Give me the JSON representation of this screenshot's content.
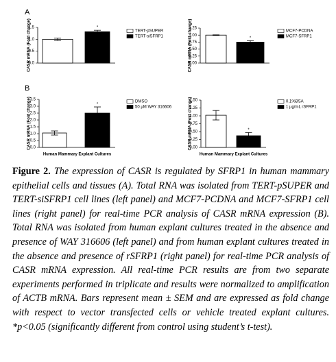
{
  "panel_labels": [
    "A",
    "B"
  ],
  "chart_data": [
    {
      "type": "bar",
      "ylabel": "CASR mRNA (Fold change)",
      "ylim": [
        0,
        1.5
      ],
      "yticks": [
        {
          "value": 0,
          "label": "0.0"
        },
        {
          "value": 0.5,
          "label": "0.5"
        },
        {
          "value": 1,
          "label": "1.0"
        },
        {
          "value": 1.5,
          "label": "1.5"
        }
      ],
      "series": [
        {
          "name": "TERT-pSUPER",
          "color": "#ffffff",
          "values": [
            1.0
          ],
          "errors": [
            0.05
          ]
        },
        {
          "name": "TERT-siSFRP1",
          "color": "#000000",
          "values": [
            1.32
          ],
          "errors": [
            0.06
          ]
        }
      ],
      "annotation": "*"
    },
    {
      "type": "bar",
      "ylabel": "CASR mRNA (Fold change)",
      "ylim": [
        0,
        1.25
      ],
      "yticks": [
        {
          "value": 0,
          "label": "0.00"
        },
        {
          "value": 0.25,
          "label": "0.25"
        },
        {
          "value": 0.5,
          "label": "0.50"
        },
        {
          "value": 0.75,
          "label": "0.75"
        },
        {
          "value": 1,
          "label": "1.00"
        },
        {
          "value": 1.25,
          "label": "1.25"
        }
      ],
      "series": [
        {
          "name": "MCF7-PCDNA",
          "color": "#ffffff",
          "values": [
            1.0
          ],
          "errors": [
            0.01
          ]
        },
        {
          "name": "MCF7-SFRP1",
          "color": "#000000",
          "values": [
            0.75
          ],
          "errors": [
            0.05
          ]
        }
      ],
      "annotation": "*"
    },
    {
      "type": "bar",
      "ylabel": "CASR mRNA (Fold change)",
      "xlabel": "Human Mammary Explant Cultures",
      "ylim": [
        0,
        3.5
      ],
      "yticks": [
        {
          "value": 0,
          "label": "0.0"
        },
        {
          "value": 0.5,
          "label": "0.5"
        },
        {
          "value": 1,
          "label": "1.0"
        },
        {
          "value": 1.5,
          "label": "1.5"
        },
        {
          "value": 2,
          "label": "2.0"
        },
        {
          "value": 2.5,
          "label": "2.5"
        },
        {
          "value": 3,
          "label": "3.0"
        },
        {
          "value": 3.5,
          "label": "3.5"
        }
      ],
      "series": [
        {
          "name": "DMSO",
          "color": "#ffffff",
          "values": [
            1.05
          ],
          "errors": [
            0.15
          ]
        },
        {
          "name": "50 µM WAY 316606",
          "color": "#000000",
          "values": [
            2.5
          ],
          "errors": [
            0.45
          ]
        }
      ],
      "annotation": "*"
    },
    {
      "type": "bar",
      "ylabel": "CASR mRNA (Fold change)",
      "xlabel": "Human Mammary Explant Cultures",
      "ylim": [
        0,
        1.5
      ],
      "yticks": [
        {
          "value": 0,
          "label": "0.00"
        },
        {
          "value": 0.25,
          "label": "0.25"
        },
        {
          "value": 0.5,
          "label": "0.50"
        },
        {
          "value": 0.75,
          "label": "0.75"
        },
        {
          "value": 1,
          "label": "1.00"
        },
        {
          "value": 1.25,
          "label": "1.25"
        },
        {
          "value": 1.5,
          "label": "1.50"
        }
      ],
      "series": [
        {
          "name": "0.1%BSA",
          "color": "#ffffff",
          "values": [
            1.02
          ],
          "errors": [
            0.15
          ]
        },
        {
          "name": "1 µg/mL rSFRP1",
          "color": "#000000",
          "values": [
            0.37
          ],
          "errors": [
            0.1
          ]
        }
      ],
      "annotation": "*"
    }
  ],
  "caption": {
    "label": "Figure 2.",
    "text": "The expression of CASR is regulated by SFRP1 in human mammary epithelial cells and tissues (A). Total RNA was isolated from TERT-pSUPER and TERT-siSFRP1 cell lines (left panel) and MCF7-PCDNA and MCF7-SFRP1 cell lines (right panel) for real-time PCR analysis of CASR mRNA expression (B). Total RNA was isolated from human explant cultures treated in the absence and presence of WAY 316606 (left panel) and from human explant cultures treated in the absence and presence of rSFRP1 (right panel) for real-time PCR analysis of CASR mRNA expression. All real-time PCR results are from two separate experiments performed in triplicate and results were normalized to amplification of ACTB mRNA. Bars represent mean ± SEM and are expressed as fold change with respect to vector transfected cells or vehicle treated explant cultures. *p<0.05 (significantly different from control using student’s t-test)."
  }
}
